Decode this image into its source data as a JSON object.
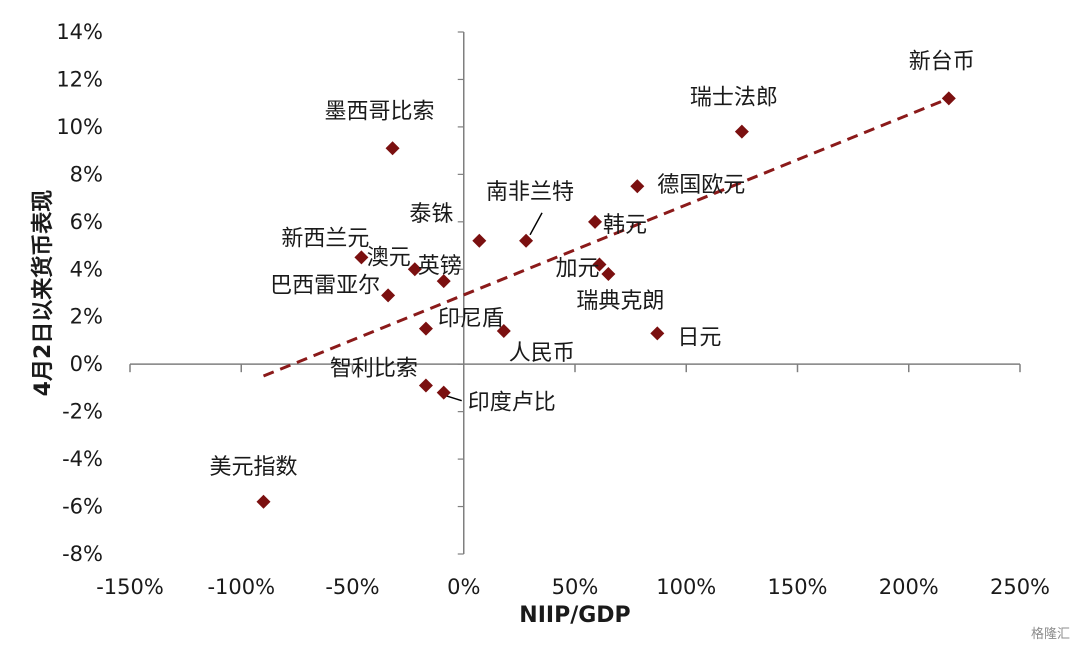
{
  "chart_data": {
    "type": "scatter",
    "xlabel": "NIIP/GDP",
    "ylabel": "4月2日以来货币表现",
    "xlim": [
      -150,
      250
    ],
    "ylim": [
      -8,
      14
    ],
    "x_ticks": [
      "-150%",
      "-100%",
      "-50%",
      "0%",
      "50%",
      "100%",
      "150%",
      "200%",
      "250%"
    ],
    "y_ticks": [
      "14%",
      "12%",
      "10%",
      "8%",
      "6%",
      "4%",
      "2%",
      "0%",
      "-2%",
      "-4%",
      "-6%",
      "-8%"
    ],
    "point_color": "#7b1010",
    "trendline": {
      "style": "dashed",
      "color": "#8b1a1a",
      "x": [
        -90,
        218
      ],
      "y": [
        -0.5,
        11.2
      ]
    },
    "points": [
      {
        "label": "新台币",
        "x": 218,
        "y": 11.2
      },
      {
        "label": "瑞士法郎",
        "x": 125,
        "y": 9.8
      },
      {
        "label": "墨西哥比索",
        "x": -32,
        "y": 9.1
      },
      {
        "label": "德国欧元",
        "x": 78,
        "y": 7.5
      },
      {
        "label": "韩元",
        "x": 59,
        "y": 6.0
      },
      {
        "label": "南非兰特",
        "x": 28,
        "y": 5.2
      },
      {
        "label": "泰铢",
        "x": 7,
        "y": 5.2
      },
      {
        "label": "新西兰元",
        "x": -46,
        "y": 4.5
      },
      {
        "label": "澳元",
        "x": -22,
        "y": 4.0
      },
      {
        "label": "英镑",
        "x": -9,
        "y": 3.5
      },
      {
        "label": "加元",
        "x": 61,
        "y": 4.2
      },
      {
        "label": "瑞典克朗",
        "x": 65,
        "y": 3.8
      },
      {
        "label": "巴西雷亚尔",
        "x": -34,
        "y": 2.9
      },
      {
        "label": "印尼盾",
        "x": -17,
        "y": 1.5
      },
      {
        "label": "人民币",
        "x": 18,
        "y": 1.4
      },
      {
        "label": "日元",
        "x": 87,
        "y": 1.3
      },
      {
        "label": "智利比索",
        "x": -17,
        "y": -0.9
      },
      {
        "label": "印度卢比",
        "x": -9,
        "y": -1.2
      },
      {
        "label": "美元指数",
        "x": -90,
        "y": -5.8
      }
    ]
  },
  "watermark": "格隆汇"
}
